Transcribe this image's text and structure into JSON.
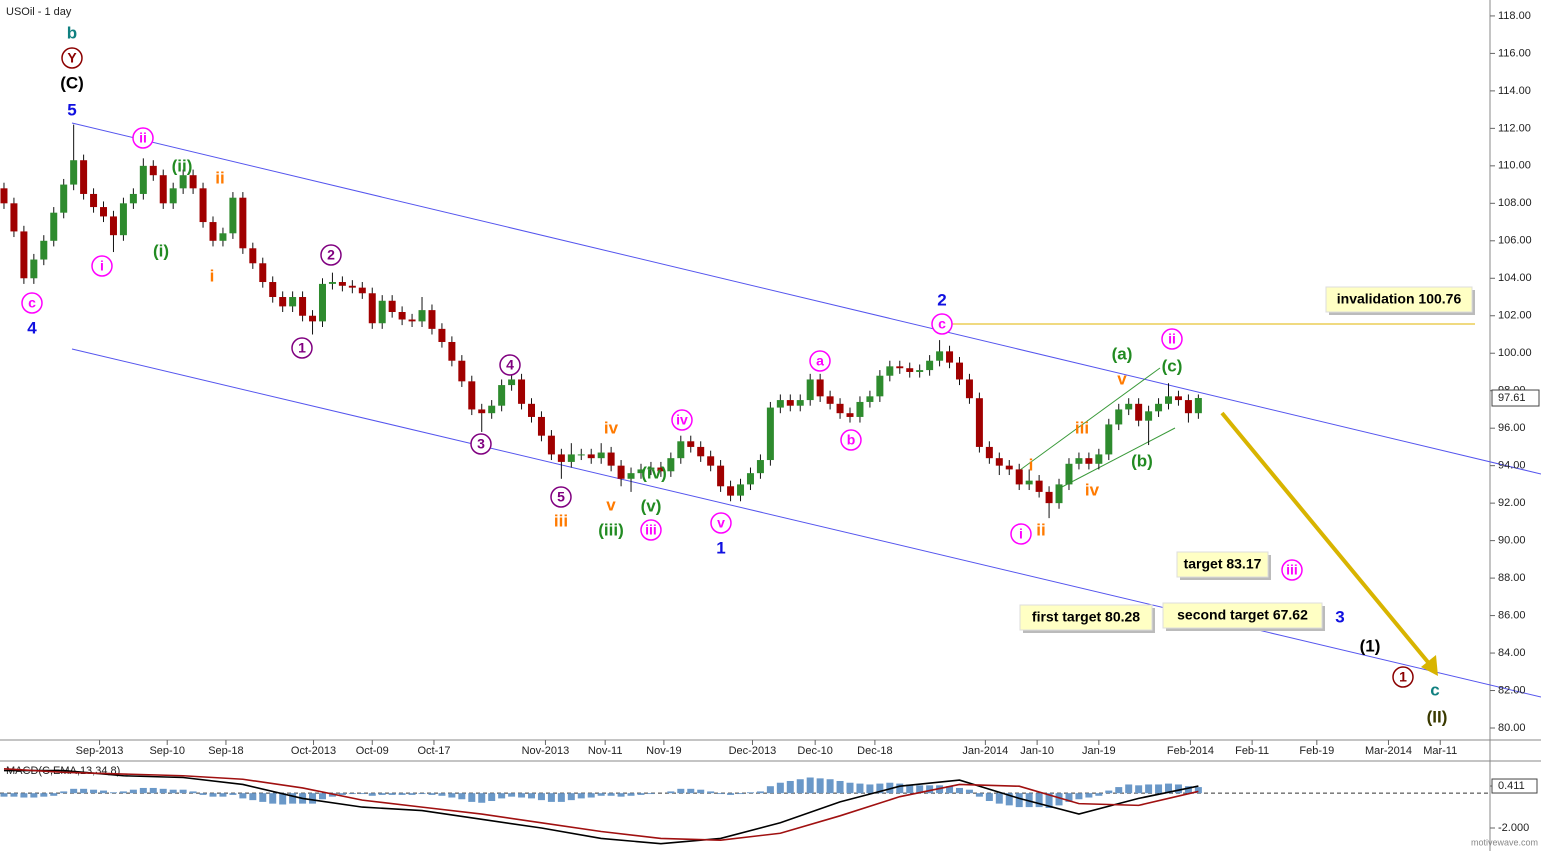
{
  "chart_data": [
    {
      "type": "candlestick",
      "title": "USOil - 1 day",
      "up_color": "#2e8b2e",
      "down_color": "#a00000",
      "candles": [
        [
          108.8,
          109.1,
          107.7,
          108
        ],
        [
          108,
          108.3,
          106.2,
          106.5
        ],
        [
          106.5,
          106.8,
          103.7,
          104
        ],
        [
          104,
          105.3,
          103.7,
          105
        ],
        [
          105,
          106.3,
          104.7,
          106
        ],
        [
          106,
          107.8,
          105.7,
          107.5
        ],
        [
          107.5,
          109.3,
          107.2,
          109
        ],
        [
          109,
          112.2,
          108.7,
          110.3
        ],
        [
          110.3,
          110.6,
          108.2,
          108.5
        ],
        [
          108.5,
          108.8,
          107.5,
          107.8
        ],
        [
          107.8,
          108.1,
          107,
          107.3
        ],
        [
          107.3,
          107.6,
          105.4,
          106.3
        ],
        [
          106.3,
          108.3,
          106,
          108
        ],
        [
          108,
          108.8,
          107.7,
          108.5
        ],
        [
          108.5,
          110.4,
          108.2,
          110
        ],
        [
          110,
          110.3,
          109.2,
          109.5
        ],
        [
          109.5,
          109.8,
          107.7,
          108
        ],
        [
          108,
          109.1,
          107.7,
          108.8
        ],
        [
          108.8,
          109.8,
          108.5,
          109.5
        ],
        [
          109.5,
          109.8,
          108.5,
          108.8
        ],
        [
          108.8,
          109.1,
          106.7,
          107
        ],
        [
          107,
          107.3,
          105.7,
          106
        ],
        [
          106,
          106.7,
          105.7,
          106.4
        ],
        [
          106.4,
          108.6,
          106.1,
          108.3
        ],
        [
          108.3,
          108.6,
          105.3,
          105.6
        ],
        [
          105.6,
          105.9,
          104.5,
          104.8
        ],
        [
          104.8,
          105.1,
          103.5,
          103.8
        ],
        [
          103.8,
          104.1,
          102.7,
          103
        ],
        [
          103,
          103.3,
          102.2,
          102.5
        ],
        [
          102.5,
          103.3,
          102.2,
          103
        ],
        [
          103,
          103.3,
          101.7,
          102
        ],
        [
          102,
          102.3,
          101,
          101.7
        ],
        [
          101.7,
          104,
          101.4,
          103.7
        ],
        [
          103.7,
          104.3,
          103.4,
          103.8
        ],
        [
          103.8,
          104.1,
          103.3,
          103.6
        ],
        [
          103.6,
          103.9,
          103.2,
          103.5
        ],
        [
          103.5,
          103.8,
          102.9,
          103.2
        ],
        [
          103.2,
          103.5,
          101.3,
          101.6
        ],
        [
          101.6,
          103.1,
          101.3,
          102.8
        ],
        [
          102.8,
          103.1,
          101.9,
          102.2
        ],
        [
          102.2,
          102.5,
          101.5,
          101.8
        ],
        [
          101.8,
          102.1,
          101.4,
          101.7
        ],
        [
          101.7,
          103,
          101.4,
          102.3
        ],
        [
          102.3,
          102.6,
          101,
          101.3
        ],
        [
          101.3,
          101.6,
          100.3,
          100.6
        ],
        [
          100.6,
          100.9,
          99.3,
          99.6
        ],
        [
          99.6,
          99.9,
          98.2,
          98.5
        ],
        [
          98.5,
          98.8,
          96.7,
          97
        ],
        [
          97,
          97.3,
          95.8,
          96.8
        ],
        [
          96.8,
          97.5,
          96.5,
          97.2
        ],
        [
          97.2,
          98.6,
          96.9,
          98.3
        ],
        [
          98.3,
          98.9,
          98,
          98.6
        ],
        [
          98.6,
          98.9,
          97,
          97.3
        ],
        [
          97.3,
          97.6,
          96.3,
          96.6
        ],
        [
          96.6,
          96.9,
          95.3,
          95.6
        ],
        [
          95.6,
          95.9,
          94.3,
          94.6
        ],
        [
          94.6,
          94.9,
          93.3,
          94.2
        ],
        [
          94.2,
          95.2,
          93.9,
          94.6
        ],
        [
          94.6,
          94.9,
          94.3,
          94.6
        ],
        [
          94.6,
          94.9,
          94.1,
          94.4
        ],
        [
          94.4,
          95.2,
          94.1,
          94.7
        ],
        [
          94.7,
          95,
          93.7,
          94
        ],
        [
          94,
          94.3,
          92.9,
          93.3
        ],
        [
          93.3,
          93.9,
          92.6,
          93.6
        ],
        [
          93.6,
          94.1,
          93.3,
          93.8
        ],
        [
          93.8,
          94.2,
          93.5,
          93.9
        ],
        [
          93.9,
          94.2,
          93.4,
          93.7
        ],
        [
          93.7,
          94.7,
          93.4,
          94.4
        ],
        [
          94.4,
          95.6,
          94.1,
          95.3
        ],
        [
          95.3,
          95.6,
          94.7,
          95
        ],
        [
          95,
          95.3,
          94.2,
          94.5
        ],
        [
          94.5,
          94.8,
          93.7,
          94
        ],
        [
          94,
          94.3,
          92.6,
          92.9
        ],
        [
          92.9,
          93.2,
          92.1,
          92.4
        ],
        [
          92.4,
          93.3,
          92.1,
          93
        ],
        [
          93,
          93.9,
          92.7,
          93.6
        ],
        [
          93.6,
          94.6,
          93.3,
          94.3
        ],
        [
          94.3,
          97.4,
          94,
          97.1
        ],
        [
          97.1,
          97.8,
          96.8,
          97.5
        ],
        [
          97.5,
          97.8,
          96.9,
          97.2
        ],
        [
          97.2,
          97.8,
          96.9,
          97.5
        ],
        [
          97.5,
          98.9,
          97.2,
          98.6
        ],
        [
          98.6,
          98.9,
          97.4,
          97.7
        ],
        [
          97.7,
          98,
          97,
          97.3
        ],
        [
          97.3,
          97.6,
          96.5,
          96.8
        ],
        [
          96.8,
          97.1,
          96.3,
          96.6
        ],
        [
          96.6,
          97.7,
          96.3,
          97.4
        ],
        [
          97.4,
          98,
          97.1,
          97.7
        ],
        [
          97.7,
          99.1,
          97.4,
          98.8
        ],
        [
          98.8,
          99.6,
          98.5,
          99.3
        ],
        [
          99.3,
          99.6,
          98.9,
          99.2
        ],
        [
          99.2,
          99.5,
          98.7,
          99
        ],
        [
          99,
          99.4,
          98.7,
          99.1
        ],
        [
          99.1,
          99.9,
          98.8,
          99.6
        ],
        [
          99.6,
          100.7,
          99.3,
          100.1
        ],
        [
          100.1,
          100.4,
          99.2,
          99.5
        ],
        [
          99.5,
          99.8,
          98.3,
          98.6
        ],
        [
          98.6,
          98.9,
          97.3,
          97.6
        ],
        [
          97.6,
          97.9,
          94.7,
          95
        ],
        [
          95,
          95.3,
          94.1,
          94.4
        ],
        [
          94.4,
          94.7,
          93.5,
          94
        ],
        [
          94,
          94.3,
          93.5,
          93.8
        ],
        [
          93.8,
          94.1,
          92.7,
          93
        ],
        [
          93,
          93.8,
          92.7,
          93.2
        ],
        [
          93.2,
          93.5,
          92.3,
          92.6
        ],
        [
          92.6,
          92.9,
          91.2,
          92
        ],
        [
          92,
          93.3,
          91.7,
          93
        ],
        [
          93,
          94.4,
          92.7,
          94.1
        ],
        [
          94.1,
          94.7,
          93.8,
          94.4
        ],
        [
          94.4,
          94.7,
          93.8,
          94.1
        ],
        [
          94.1,
          94.9,
          93.8,
          94.6
        ],
        [
          94.6,
          96.5,
          94.3,
          96.2
        ],
        [
          96.2,
          97.3,
          95.9,
          97
        ],
        [
          97,
          97.6,
          96.7,
          97.3
        ],
        [
          97.3,
          97.6,
          96.1,
          96.4
        ],
        [
          96.4,
          97.2,
          95.1,
          96.9
        ],
        [
          96.9,
          97.6,
          96.6,
          97.3
        ],
        [
          97.3,
          98.4,
          97,
          97.7
        ],
        [
          97.7,
          98,
          97.2,
          97.5
        ],
        [
          97.5,
          97.8,
          96.3,
          96.8
        ],
        [
          96.8,
          97.8,
          96.5,
          97.61
        ]
      ],
      "last_price": 97.61,
      "xlim": [
        -0.4,
        149.3
      ],
      "xticks": [
        {
          "value": 9.6,
          "label": "Sep-2013"
        },
        {
          "value": 16.4,
          "label": "Sep-10"
        },
        {
          "value": 22.3,
          "label": "Sep-18"
        },
        {
          "value": 31.1,
          "label": "Oct-2013"
        },
        {
          "value": 37,
          "label": "Oct-09"
        },
        {
          "value": 43.2,
          "label": "Oct-17"
        },
        {
          "value": 54.4,
          "label": "Nov-2013"
        },
        {
          "value": 60.4,
          "label": "Nov-11"
        },
        {
          "value": 66.3,
          "label": "Nov-19"
        },
        {
          "value": 75.2,
          "label": "Dec-2013"
        },
        {
          "value": 81.5,
          "label": "Dec-10"
        },
        {
          "value": 87.5,
          "label": "Dec-18"
        },
        {
          "value": 98.6,
          "label": "Jan-2014"
        },
        {
          "value": 103.8,
          "label": "Jan-10"
        },
        {
          "value": 110,
          "label": "Jan-19"
        },
        {
          "value": 119.2,
          "label": "Feb-2014"
        },
        {
          "value": 125.4,
          "label": "Feb-11"
        },
        {
          "value": 131.9,
          "label": "Feb-19"
        },
        {
          "value": 139.1,
          "label": "Mar-2014"
        },
        {
          "value": 144.3,
          "label": "Mar-11"
        }
      ],
      "ylim": [
        79.36,
        118.85
      ],
      "yticks": [
        {
          "value": 80,
          "label": "80.00"
        },
        {
          "value": 82,
          "label": "82.00"
        },
        {
          "value": 84,
          "label": "84.00"
        },
        {
          "value": 86,
          "label": "86.00"
        },
        {
          "value": 88,
          "label": "88.00"
        },
        {
          "value": 90,
          "label": "90.00"
        },
        {
          "value": 92,
          "label": "92.00"
        },
        {
          "value": 94,
          "label": "94.00"
        },
        {
          "value": 96,
          "label": "96.00"
        },
        {
          "value": 98,
          "label": "98.00"
        },
        {
          "value": 100,
          "label": "100.00"
        },
        {
          "value": 102,
          "label": "102.00"
        },
        {
          "value": 104,
          "label": "104.00"
        },
        {
          "value": 106,
          "label": "106.00"
        },
        {
          "value": 108,
          "label": "108.00"
        },
        {
          "value": 110,
          "label": "110.00"
        },
        {
          "value": 112,
          "label": "112.00"
        },
        {
          "value": 114,
          "label": "114.00"
        },
        {
          "value": 116,
          "label": "116.00"
        },
        {
          "value": 118,
          "label": "118.00"
        }
      ],
      "annotations": [
        "b",
        "Y",
        "(C)",
        "5",
        "c",
        "4",
        "ii",
        "(ii)",
        "ii",
        "i",
        "(i)",
        "i",
        "2",
        "1",
        "4",
        "3",
        "5",
        "iii",
        "iv",
        "v",
        "(iii)",
        "iv",
        "(iv)",
        "(v)",
        "iii",
        "v",
        "1",
        "a",
        "b",
        "2",
        "c",
        "(a)",
        "v",
        "ii",
        "(c)",
        "iii",
        "(b)",
        "iv",
        "i",
        "i",
        "ii",
        "iii",
        "3",
        "(1)",
        "1",
        "c",
        "(II)"
      ],
      "boxes": [
        "invalidation 100.76",
        "target 83.17",
        "first target 80.28",
        "second target 67.62"
      ]
    },
    {
      "type": "macd",
      "title": "MACD(C,EMA,13,34,8)",
      "hist_color": "#6a98c8",
      "histogram": [
        -0.2,
        -0.2,
        -0.25,
        -0.25,
        -0.2,
        -0.15,
        0.1,
        0.25,
        0.25,
        0.2,
        0.15,
        0.05,
        0.1,
        0.2,
        0.3,
        0.3,
        0.25,
        0.2,
        0.2,
        0.1,
        -0.1,
        -0.2,
        -0.2,
        -0.1,
        -0.3,
        -0.4,
        -0.5,
        -0.6,
        -0.65,
        -0.6,
        -0.6,
        -0.6,
        -0.35,
        -0.2,
        -0.1,
        -0.05,
        -0.05,
        -0.15,
        -0.1,
        -0.1,
        -0.1,
        -0.1,
        -0.05,
        -0.1,
        -0.15,
        -0.25,
        -0.35,
        -0.5,
        -0.55,
        -0.45,
        -0.3,
        -0.2,
        -0.25,
        -0.3,
        -0.4,
        -0.5,
        -0.5,
        -0.4,
        -0.3,
        -0.25,
        -0.15,
        -0.15,
        -0.2,
        -0.15,
        -0.1,
        -0.05,
        0,
        0.1,
        0.25,
        0.25,
        0.2,
        0.1,
        -0.05,
        -0.1,
        -0.05,
        0.05,
        0.1,
        0.4,
        0.6,
        0.7,
        0.8,
        0.9,
        0.85,
        0.8,
        0.7,
        0.6,
        0.55,
        0.5,
        0.55,
        0.6,
        0.55,
        0.5,
        0.45,
        0.45,
        0.45,
        0.4,
        0.3,
        0.2,
        -0.2,
        -0.45,
        -0.6,
        -0.7,
        -0.8,
        -0.8,
        -0.8,
        -0.85,
        -0.7,
        -0.5,
        -0.35,
        -0.25,
        -0.15,
        0.15,
        0.35,
        0.5,
        0.45,
        0.5,
        0.5,
        0.55,
        0.5,
        0.4,
        0.35
      ],
      "x": [
        0,
        6,
        12,
        18,
        24,
        30,
        36,
        42,
        48,
        54,
        60,
        66,
        72,
        78,
        84,
        90,
        96,
        102,
        108,
        114,
        120
      ],
      "series": [
        {
          "color": "#000000",
          "values": [
            1.3,
            1.3,
            1.0,
            0.9,
            0.5,
            -0.3,
            -0.8,
            -1.0,
            -1.5,
            -2.0,
            -2.6,
            -2.9,
            -2.6,
            -1.7,
            -0.5,
            0.4,
            0.75,
            -0.3,
            -1.2,
            -0.3,
            0.41
          ]
        },
        {
          "color": "#a01010",
          "values": [
            1.4,
            1.2,
            1.1,
            1.0,
            0.8,
            0.3,
            -0.4,
            -0.8,
            -1.2,
            -1.7,
            -2.2,
            -2.6,
            -2.7,
            -2.3,
            -1.3,
            -0.2,
            0.5,
            0.4,
            -0.6,
            -0.7,
            0.1
          ]
        }
      ],
      "ylim": [
        -3.32,
        1.79
      ],
      "yticks": [
        0.411,
        {
          "value": -2,
          "label": "-2.000"
        }
      ]
    }
  ],
  "footer": "motivewave.com"
}
